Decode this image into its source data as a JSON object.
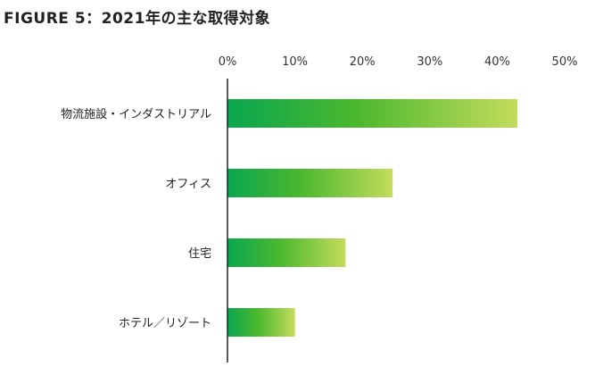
{
  "title": "FIGURE 5：2021年の主な取得対象",
  "chart_data": {
    "type": "bar",
    "orientation": "horizontal",
    "title": "FIGURE 5：2021年の主な取得対象",
    "categories": [
      "物流施設・インダストリアル",
      "オフィス",
      "住宅",
      "ホテル／リゾート"
    ],
    "values": [
      43,
      24.5,
      17.5,
      10
    ],
    "xlim": [
      0,
      50
    ],
    "x_ticks": [
      "0%",
      "10%",
      "20%",
      "30%",
      "40%",
      "50%"
    ],
    "xlabel": "",
    "ylabel": "",
    "grid": false,
    "legend": "none",
    "colors": {
      "gradient_start": "#0aa650",
      "gradient_mid": "#4cb82e",
      "gradient_end": "#c4dc5c",
      "axis": "#222222"
    }
  }
}
